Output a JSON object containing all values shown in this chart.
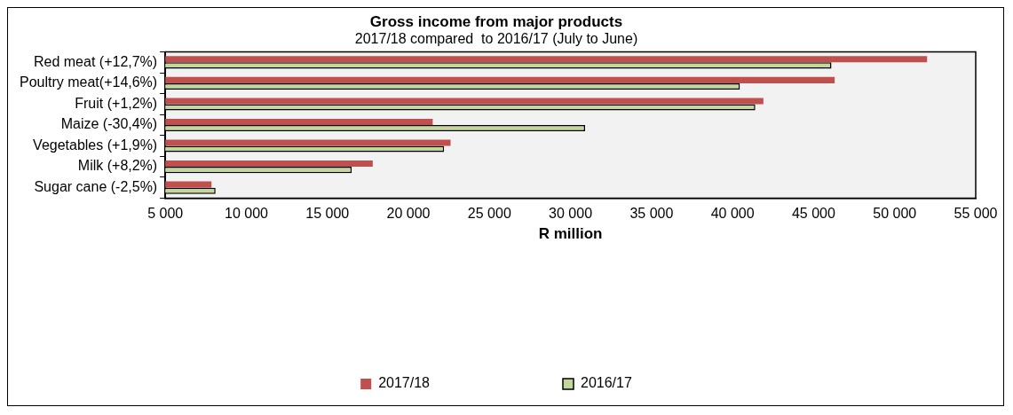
{
  "chart_data": {
    "type": "bar",
    "orientation": "horizontal",
    "title": "Gross income from major products",
    "subtitle": "2017/18 compared  to 2016/17 (July to June)",
    "xlabel": "R million",
    "categories": [
      "Red meat (+12,7%)",
      "Poultry meat(+14,6%)",
      "Fruit (+1,2%)",
      "Maize (-30,4%)",
      "Vegetables (+1,9%)",
      "Milk (+8,2%)",
      "Sugar cane (-2,5%)"
    ],
    "series": [
      {
        "name": "2017/18",
        "color": "#c0504d",
        "values": [
          52000,
          46300,
          41900,
          21500,
          22600,
          17800,
          7850
        ]
      },
      {
        "name": "2016/17",
        "color": "#c4d79b",
        "values": [
          46100,
          40450,
          41400,
          30900,
          22200,
          16500,
          8100
        ]
      }
    ],
    "xlim": [
      5000,
      55000
    ],
    "xticks": [
      {
        "value": 5000,
        "label": "5 000"
      },
      {
        "value": 10000,
        "label": "10 000"
      },
      {
        "value": 15000,
        "label": "15 000"
      },
      {
        "value": 20000,
        "label": "20 000"
      },
      {
        "value": 25000,
        "label": "25 000"
      },
      {
        "value": 30000,
        "label": "30 000"
      },
      {
        "value": 35000,
        "label": "35 000"
      },
      {
        "value": 40000,
        "label": "40 000"
      },
      {
        "value": 45000,
        "label": "45 000"
      },
      {
        "value": 50000,
        "label": "50 000"
      },
      {
        "value": 55000,
        "label": "55 000"
      }
    ],
    "grid": false,
    "legend": "bottom"
  }
}
